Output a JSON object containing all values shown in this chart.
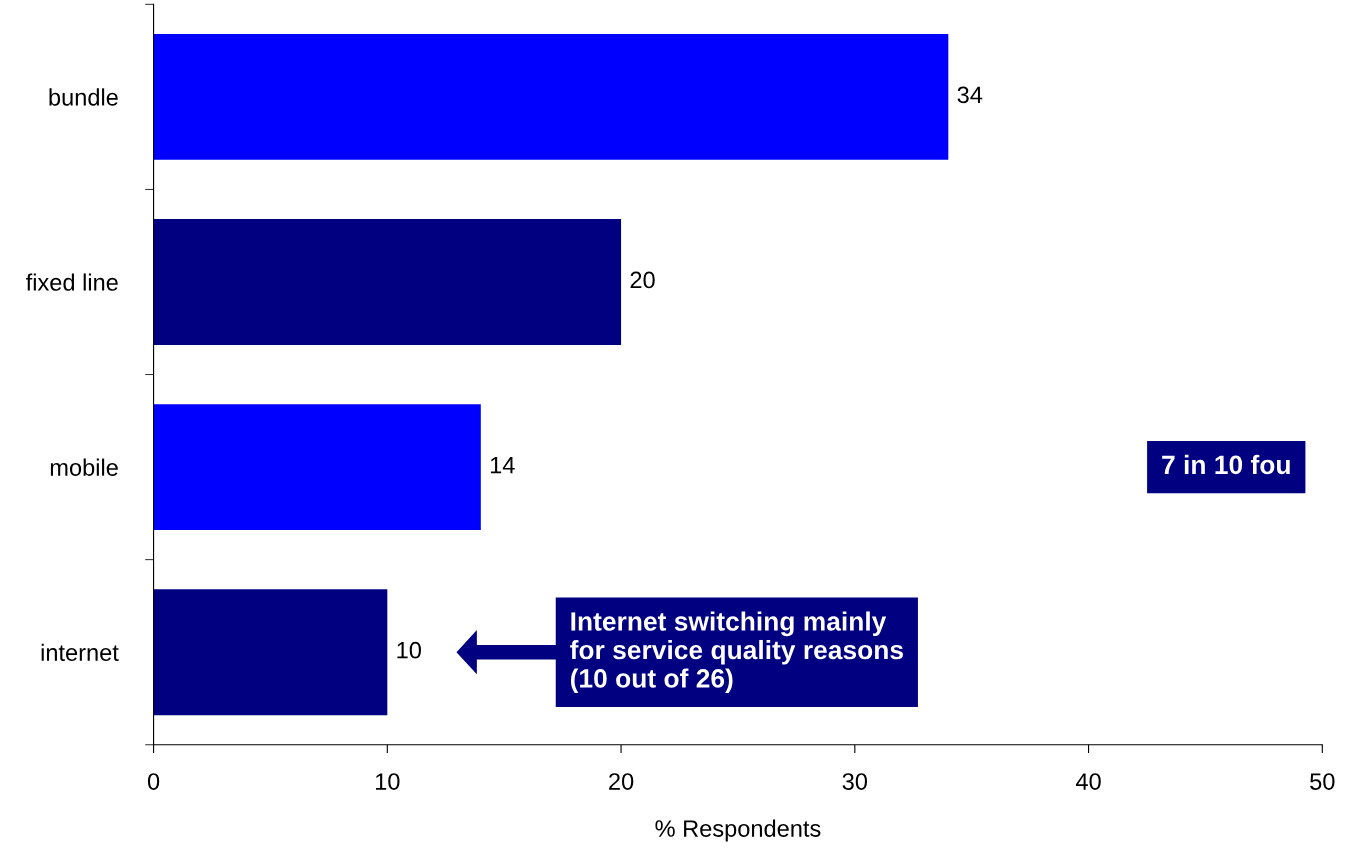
{
  "chart_data": {
    "type": "bar",
    "orientation": "horizontal",
    "categories": [
      "bundle",
      "fixed line",
      "mobile",
      "internet"
    ],
    "values": [
      34,
      20,
      14,
      10
    ],
    "colors": [
      "#0000ff",
      "#000080",
      "#0000ff",
      "#000080"
    ],
    "xlim": [
      0,
      50
    ],
    "xticks": [
      0,
      10,
      20,
      30,
      40,
      50
    ],
    "xlabel": "% Respondents",
    "data_labels": true,
    "grid": false,
    "annotations": [
      "Internet switching mainly\nfor service quality reasons\n(10 out of 26)",
      "7 in 10 fou"
    ]
  }
}
